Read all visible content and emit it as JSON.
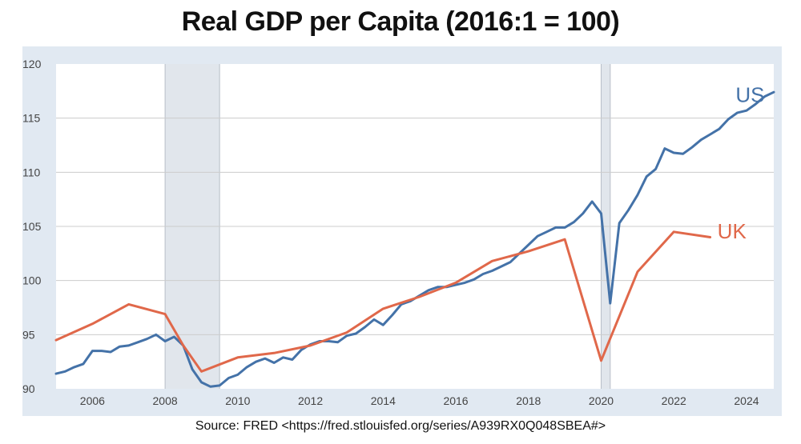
{
  "title": "Real GDP per Capita (2016:1 = 100)",
  "source": "Source: FRED <https://fred.stlouisfed.org/series/A939RX0Q048SBEA#>",
  "colors": {
    "us": "#4472a8",
    "uk": "#e0684a",
    "recession": "#e1e6ec",
    "panel_bg": "#e1e9f2",
    "plot_bg": "#ffffff",
    "grid": "#cccccc"
  },
  "chart_data": {
    "type": "line",
    "title": "Real GDP per Capita (2016:1 = 100)",
    "xlabel": "",
    "ylabel": "",
    "xlim": [
      2005.0,
      2024.75
    ],
    "ylim": [
      90,
      120
    ],
    "x_ticks": [
      2006,
      2008,
      2010,
      2012,
      2014,
      2016,
      2018,
      2020,
      2022,
      2024
    ],
    "y_ticks": [
      90,
      95,
      100,
      105,
      110,
      115,
      120
    ],
    "grid": true,
    "legend": "none",
    "recessions": [
      [
        2008.0,
        2009.5
      ],
      [
        2020.0,
        2020.25
      ]
    ],
    "series": [
      {
        "name": "US",
        "key": "us",
        "label_at": [
          2023.7,
          116.5
        ],
        "points": [
          [
            2005.0,
            91.4
          ],
          [
            2005.25,
            91.6
          ],
          [
            2005.5,
            92.0
          ],
          [
            2005.75,
            92.3
          ],
          [
            2006.0,
            93.5
          ],
          [
            2006.25,
            93.5
          ],
          [
            2006.5,
            93.4
          ],
          [
            2006.75,
            93.9
          ],
          [
            2007.0,
            94.0
          ],
          [
            2007.25,
            94.3
          ],
          [
            2007.5,
            94.6
          ],
          [
            2007.75,
            95.0
          ],
          [
            2008.0,
            94.4
          ],
          [
            2008.25,
            94.8
          ],
          [
            2008.5,
            94.0
          ],
          [
            2008.75,
            91.8
          ],
          [
            2009.0,
            90.6
          ],
          [
            2009.25,
            90.2
          ],
          [
            2009.5,
            90.3
          ],
          [
            2009.75,
            91.0
          ],
          [
            2010.0,
            91.3
          ],
          [
            2010.25,
            92.0
          ],
          [
            2010.5,
            92.5
          ],
          [
            2010.75,
            92.8
          ],
          [
            2011.0,
            92.4
          ],
          [
            2011.25,
            92.9
          ],
          [
            2011.5,
            92.7
          ],
          [
            2011.75,
            93.6
          ],
          [
            2012.0,
            94.1
          ],
          [
            2012.25,
            94.4
          ],
          [
            2012.5,
            94.4
          ],
          [
            2012.75,
            94.3
          ],
          [
            2013.0,
            94.9
          ],
          [
            2013.25,
            95.1
          ],
          [
            2013.5,
            95.7
          ],
          [
            2013.75,
            96.4
          ],
          [
            2014.0,
            95.9
          ],
          [
            2014.25,
            96.8
          ],
          [
            2014.5,
            97.8
          ],
          [
            2014.75,
            98.1
          ],
          [
            2015.0,
            98.6
          ],
          [
            2015.25,
            99.1
          ],
          [
            2015.5,
            99.4
          ],
          [
            2015.75,
            99.4
          ],
          [
            2016.0,
            99.6
          ],
          [
            2016.25,
            99.8
          ],
          [
            2016.5,
            100.1
          ],
          [
            2016.75,
            100.6
          ],
          [
            2017.0,
            100.9
          ],
          [
            2017.25,
            101.3
          ],
          [
            2017.5,
            101.7
          ],
          [
            2017.75,
            102.5
          ],
          [
            2018.0,
            103.3
          ],
          [
            2018.25,
            104.1
          ],
          [
            2018.5,
            104.5
          ],
          [
            2018.75,
            104.9
          ],
          [
            2019.0,
            104.9
          ],
          [
            2019.25,
            105.4
          ],
          [
            2019.5,
            106.2
          ],
          [
            2019.75,
            107.3
          ],
          [
            2020.0,
            106.2
          ],
          [
            2020.25,
            97.9
          ],
          [
            2020.5,
            105.3
          ],
          [
            2020.75,
            106.5
          ],
          [
            2021.0,
            107.9
          ],
          [
            2021.25,
            109.6
          ],
          [
            2021.5,
            110.3
          ],
          [
            2021.75,
            112.2
          ],
          [
            2022.0,
            111.8
          ],
          [
            2022.25,
            111.7
          ],
          [
            2022.5,
            112.3
          ],
          [
            2022.75,
            113.0
          ],
          [
            2023.0,
            113.5
          ],
          [
            2023.25,
            114.0
          ],
          [
            2023.5,
            114.9
          ],
          [
            2023.75,
            115.5
          ],
          [
            2024.0,
            115.7
          ],
          [
            2024.25,
            116.3
          ],
          [
            2024.5,
            117.0
          ],
          [
            2024.75,
            117.4
          ]
        ]
      },
      {
        "name": "UK",
        "key": "uk",
        "label_at": [
          2023.2,
          103.9
        ],
        "points": [
          [
            2005.0,
            94.5
          ],
          [
            2006.0,
            96.0
          ],
          [
            2007.0,
            97.8
          ],
          [
            2008.0,
            96.9
          ],
          [
            2008.5,
            94.0
          ],
          [
            2009.0,
            91.6
          ],
          [
            2010.0,
            92.9
          ],
          [
            2011.0,
            93.3
          ],
          [
            2012.0,
            94.0
          ],
          [
            2013.0,
            95.2
          ],
          [
            2014.0,
            97.4
          ],
          [
            2015.0,
            98.5
          ],
          [
            2016.0,
            99.8
          ],
          [
            2017.0,
            101.8
          ],
          [
            2018.0,
            102.7
          ],
          [
            2019.0,
            103.8
          ],
          [
            2020.0,
            92.6
          ],
          [
            2021.0,
            100.8
          ],
          [
            2022.0,
            104.5
          ],
          [
            2023.0,
            104.0
          ]
        ]
      }
    ]
  }
}
